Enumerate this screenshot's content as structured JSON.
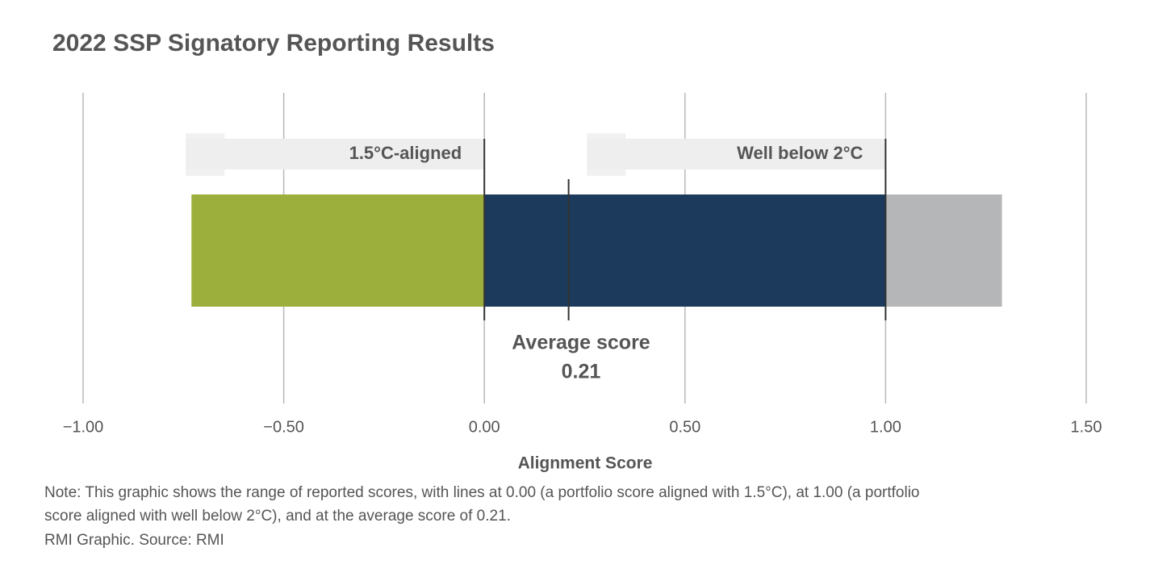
{
  "chart_data": {
    "type": "range_bar",
    "title": "2022 SSP Signatory Reporting Results",
    "x_label": "Alignment Score",
    "xlim": [
      -1,
      1.5
    ],
    "xticks": [
      {
        "value": -1,
        "label": "−1.00"
      },
      {
        "value": -0.5,
        "label": "−0.50"
      },
      {
        "value": 0,
        "label": "0.00"
      },
      {
        "value": 0.5,
        "label": "0.50"
      },
      {
        "value": 1,
        "label": "1.00"
      },
      {
        "value": 1.5,
        "label": "1.50"
      }
    ],
    "grid": true,
    "segments": [
      {
        "from": -0.73,
        "to": 0,
        "color": "#9caf3c"
      },
      {
        "from": 0,
        "to": 1,
        "color": "#1b3a5c"
      },
      {
        "from": 1,
        "to": 1.29,
        "color": "#b5b6b8"
      }
    ],
    "reference_lines": [
      {
        "value": 0,
        "label": "1.5°C-aligned"
      },
      {
        "value": 1,
        "label": "Well below 2°C"
      }
    ],
    "average": {
      "value": 0.21,
      "label": "Average score",
      "value_label": "0.21"
    },
    "notes": [
      "Note: This graphic shows the range of reported scores, with lines at 0.00 (a portfolio score aligned with 1.5°C), at 1.00 (a portfolio",
      "score aligned with well below 2°C), and at the average score of 0.21.",
      "RMI Graphic. Source: RMI"
    ]
  }
}
